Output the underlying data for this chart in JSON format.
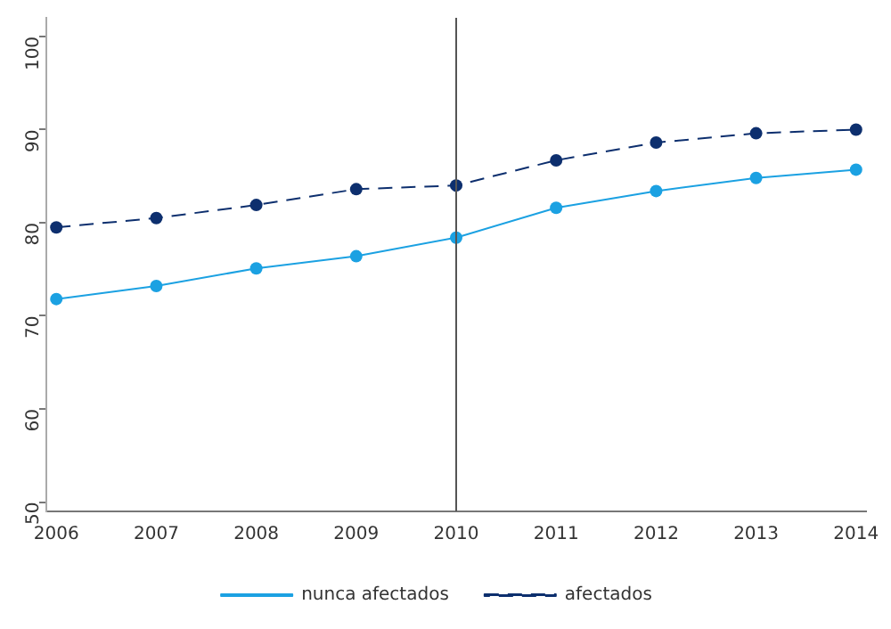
{
  "chart_data": {
    "type": "line",
    "x": [
      2006,
      2007,
      2008,
      2009,
      2010,
      2011,
      2012,
      2013,
      2014
    ],
    "series": [
      {
        "name": "nunca afectados",
        "color": "#1ba1e2",
        "line_style": "solid",
        "values": [
          71.8,
          73.2,
          75.1,
          76.4,
          78.4,
          81.6,
          83.4,
          84.8,
          85.7
        ]
      },
      {
        "name": "afectados",
        "color": "#0d2f6e",
        "line_style": "dashed",
        "values": [
          79.5,
          80.5,
          81.9,
          83.6,
          84.0,
          86.7,
          88.6,
          89.6,
          90.0
        ]
      }
    ],
    "xlim": [
      2005.9,
      2014.1
    ],
    "xticks": [
      2006,
      2007,
      2008,
      2009,
      2010,
      2011,
      2012,
      2013,
      2014
    ],
    "ylim": [
      49,
      102
    ],
    "yticks": [
      50,
      60,
      70,
      80,
      90,
      100
    ],
    "ref_lines": [
      {
        "axis": "x",
        "value": 2010,
        "color": "#555555"
      }
    ],
    "grid": false,
    "legend": "bottom",
    "marker": "circle"
  }
}
